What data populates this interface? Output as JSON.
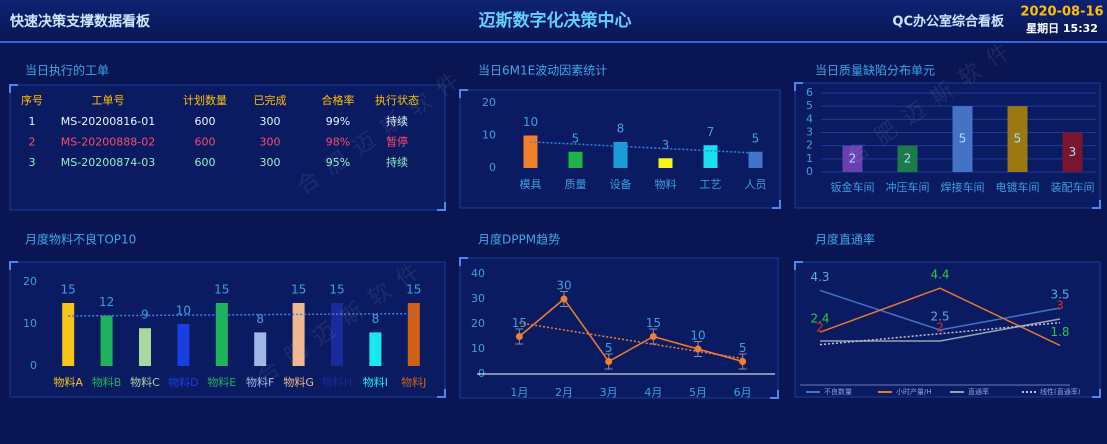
{
  "header": {
    "left": "快速决策支撑数据看板",
    "title": "迈斯数字化决策中心",
    "right": "QC办公室综合看板",
    "date": "2020-08-16",
    "time": "星期日 15:32"
  },
  "watermark": "合肥迈斯软件",
  "table": {
    "title": "当日执行的工单",
    "columns": [
      "序号",
      "工单号",
      "计划数量",
      "已完成",
      "合格率",
      "执行状态"
    ],
    "rows": [
      [
        "1",
        "MS-20200816-01",
        "600",
        "300",
        "99%",
        "持续"
      ],
      [
        "2",
        "MS-20200888-02",
        "600",
        "300",
        "98%",
        "暂停"
      ],
      [
        "3",
        "MS-20200874-03",
        "600",
        "300",
        "95%",
        "持续"
      ]
    ],
    "row_colors": [
      "#e8f4ff",
      "#ff4a6a",
      "#8ff0c8"
    ]
  },
  "chart_data": [
    {
      "type": "bar",
      "title": "当日6M1E波动因素统计",
      "categories": [
        "模具",
        "质量",
        "设备",
        "物料",
        "工艺",
        "人员"
      ],
      "values": [
        10,
        5,
        8,
        3,
        7,
        5
      ],
      "colors": [
        "#f0802a",
        "#1db34a",
        "#1a9ed8",
        "#f5f51a",
        "#19e0f0",
        "#4472c4"
      ],
      "ylim": [
        0,
        20
      ],
      "yticks": [
        0,
        10,
        20
      ],
      "label_position": "top",
      "trendline": true,
      "grid": false
    },
    {
      "type": "bar",
      "title": "当日质量缺陷分布单元",
      "categories": [
        "钣金车间",
        "冲压车间",
        "焊接车间",
        "电镀车间",
        "装配车间"
      ],
      "values": [
        2,
        2,
        5,
        5,
        3
      ],
      "colors": [
        "#6a3fb0",
        "#1f7a4a",
        "#4472c4",
        "#9a7a10",
        "#7a1530"
      ],
      "ylim": [
        0,
        6
      ],
      "yticks": [
        0,
        1,
        2,
        3,
        4,
        5,
        6
      ],
      "label_position": "inside",
      "grid": true
    },
    {
      "type": "bar",
      "title": "月度物料不良TOP10",
      "categories": [
        "物料A",
        "物料B",
        "物料C",
        "物料D",
        "物料E",
        "物料F",
        "物料G",
        "物料H",
        "物料I",
        "物料J"
      ],
      "values": [
        15,
        12,
        9,
        10,
        15,
        8,
        15,
        15,
        8,
        15
      ],
      "colors": [
        "#f5c518",
        "#1db35a",
        "#a8d8a0",
        "#1a3ee0",
        "#1db35a",
        "#a0b8e8",
        "#f0b890",
        "#1a2a9a",
        "#19e8f0",
        "#d06018"
      ],
      "ylim": [
        0,
        20
      ],
      "yticks": [
        0,
        10,
        20
      ],
      "label_position": "top",
      "trendline": true,
      "colored_categories": true,
      "grid": false
    },
    {
      "type": "line",
      "title": "月度DPPM趋势",
      "categories": [
        "1月",
        "2月",
        "3月",
        "4月",
        "5月",
        "6月"
      ],
      "values": [
        15,
        30,
        5,
        15,
        10,
        5
      ],
      "errors": [
        3,
        3,
        3,
        3,
        3,
        3
      ],
      "color": "#f08030",
      "ylim": [
        0,
        40
      ],
      "yticks": [
        0,
        10,
        20,
        30,
        40
      ],
      "markers": true,
      "trendline": true,
      "grid": false
    },
    {
      "type": "line",
      "title": "月度直通率",
      "categories": [
        null,
        null,
        null
      ],
      "ylim": [
        0,
        5
      ],
      "legend": "bottom",
      "series": [
        {
          "name": "不良数量",
          "color": "#4472c4",
          "label_color": "#5aa8e8",
          "values": [
            4.3,
            2.5,
            3.5
          ]
        },
        {
          "name": "小时产量/H",
          "color": "#e07a30",
          "label_color": "#2ec44a",
          "values": [
            2.4,
            4.4,
            1.8
          ]
        },
        {
          "name": "直通率",
          "color": "#9aa0b8",
          "label_color": "#e02a2a",
          "values": [
            2,
            2,
            3
          ]
        }
      ],
      "trendline": {
        "series": 2,
        "name": "线性(直通率)"
      }
    }
  ]
}
